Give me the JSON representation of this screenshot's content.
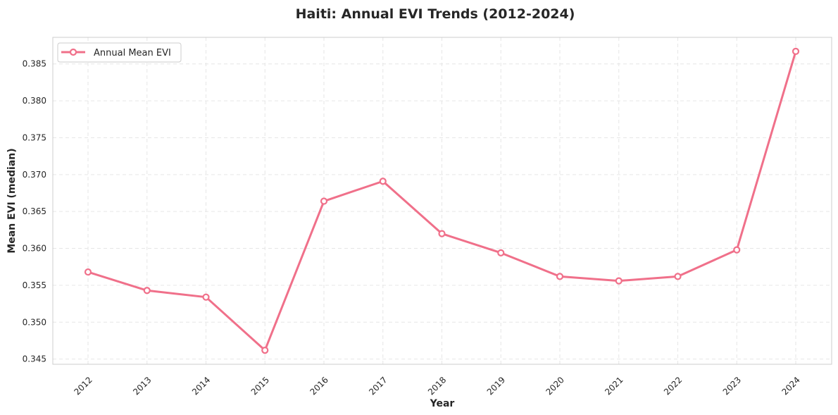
{
  "chart_data": {
    "type": "line",
    "title": "Haiti: Annual EVI Trends (2012-2024)",
    "xlabel": "Year",
    "ylabel": "Mean EVI (median)",
    "categories": [
      "2012",
      "2013",
      "2014",
      "2015",
      "2016",
      "2017",
      "2018",
      "2019",
      "2020",
      "2021",
      "2022",
      "2023",
      "2024"
    ],
    "series": [
      {
        "name": "Annual Mean EVI",
        "color": "#f0708a",
        "values": [
          0.3568,
          0.3543,
          0.3534,
          0.3462,
          0.3664,
          0.3691,
          0.362,
          0.3594,
          0.3562,
          0.3556,
          0.3562,
          0.3598,
          0.3867
        ]
      }
    ],
    "ylim": [
      0.3443,
      0.3886
    ],
    "yticks": [
      "0.345",
      "0.350",
      "0.355",
      "0.360",
      "0.365",
      "0.370",
      "0.375",
      "0.380",
      "0.385"
    ],
    "grid": true,
    "legend_position": "top-left",
    "x_tick_rotation": 45
  }
}
